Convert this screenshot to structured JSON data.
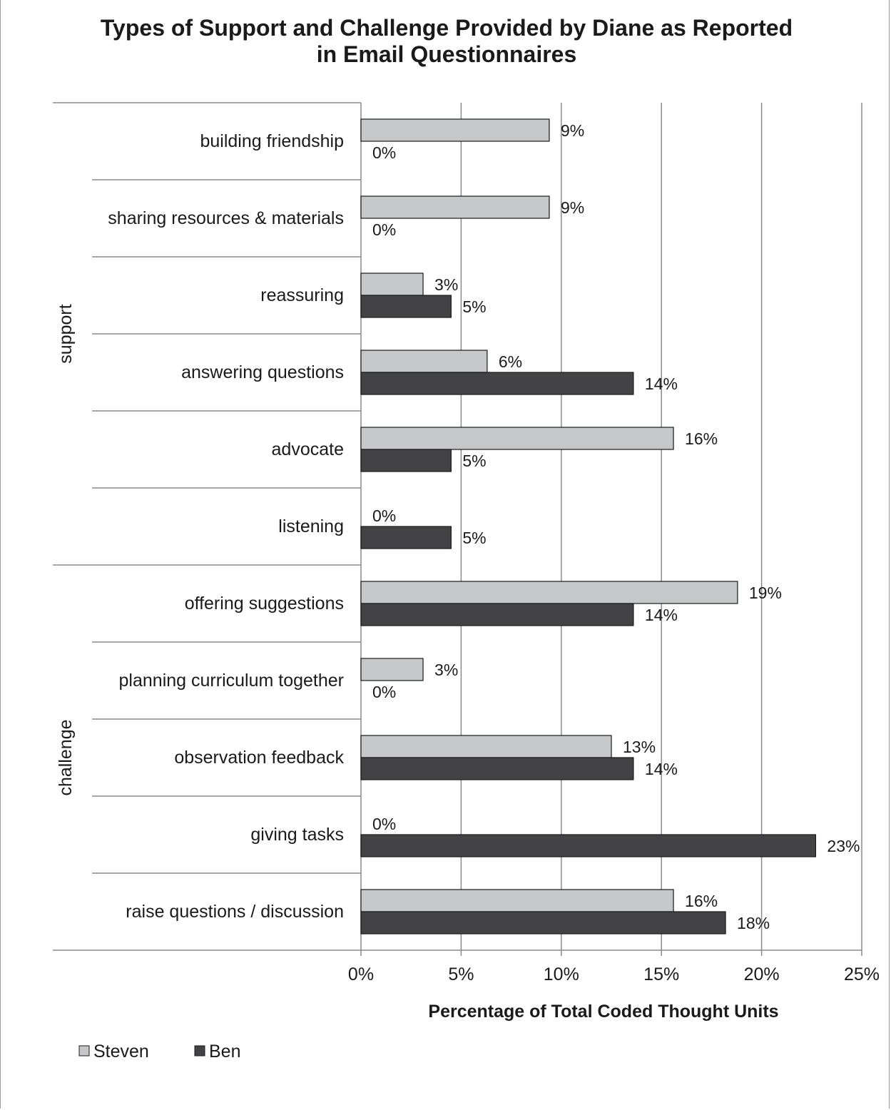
{
  "chart_data": {
    "type": "bar",
    "orientation": "horizontal",
    "title": "Types of Support and Challenge Provided by Diane as Reported in Email Questionnaires",
    "xlabel": "Percentage of Total Coded Thought Units",
    "ylabel": "",
    "xlim": [
      0,
      25
    ],
    "xticks": [
      "0%",
      "5%",
      "10%",
      "15%",
      "20%",
      "25%"
    ],
    "xtick_values": [
      0,
      5,
      10,
      15,
      20,
      25
    ],
    "grid": "vertical",
    "legend_position": "bottom-left",
    "groups": [
      {
        "name": "support",
        "categories": [
          "building friendship",
          "sharing resources & materials",
          "reassuring",
          "answering questions",
          "advocate",
          "listening"
        ]
      },
      {
        "name": "challenge",
        "categories": [
          "offering suggestions",
          "planning curriculum together",
          "observation feedback",
          "giving tasks",
          "raise questions / discussion"
        ]
      }
    ],
    "categories": [
      "building friendship",
      "sharing resources & materials",
      "reassuring",
      "answering questions",
      "advocate",
      "listening",
      "offering suggestions",
      "planning curriculum together",
      "observation feedback",
      "giving tasks",
      "raise questions / discussion"
    ],
    "series": [
      {
        "name": "Steven",
        "color": "#c6c7c9",
        "values": [
          9.4,
          9.4,
          3.1,
          6.3,
          15.6,
          0,
          18.8,
          3.1,
          12.5,
          0,
          15.6
        ],
        "labels": [
          "9%",
          "9%",
          "3%",
          "6%",
          "16%",
          "0%",
          "19%",
          "3%",
          "13%",
          "0%",
          "16%"
        ]
      },
      {
        "name": "Ben",
        "color": "#434345",
        "values": [
          0,
          0,
          4.5,
          13.6,
          4.5,
          4.5,
          13.6,
          0,
          13.6,
          22.7,
          18.2
        ],
        "labels": [
          "0%",
          "0%",
          "5%",
          "14%",
          "5%",
          "5%",
          "14%",
          "0%",
          "14%",
          "23%",
          "18%"
        ]
      }
    ]
  }
}
